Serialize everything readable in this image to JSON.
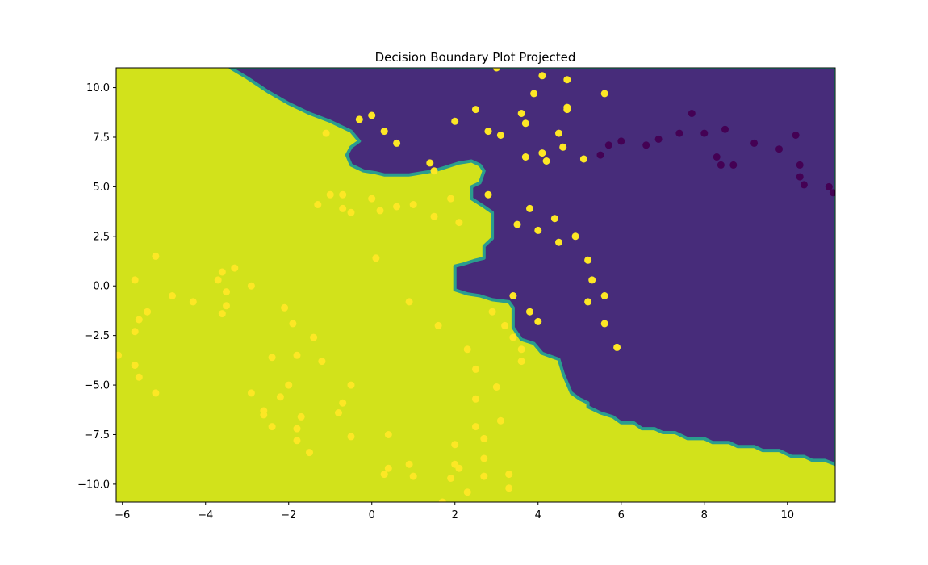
{
  "chart_data": {
    "type": "scatter",
    "title": "Decision Boundary Plot Projected",
    "xlabel": "",
    "ylabel": "",
    "xlim": [
      -6.15,
      11.15
    ],
    "ylim": [
      -10.9,
      11.0
    ],
    "x_ticks": [
      -6,
      -4,
      -2,
      0,
      2,
      4,
      6,
      8,
      10
    ],
    "x_tick_labels": [
      "−6",
      "−4",
      "−2",
      "0",
      "2",
      "4",
      "6",
      "8",
      "10"
    ],
    "y_ticks": [
      -10,
      -7.5,
      -5,
      -2.5,
      0,
      2.5,
      5,
      7.5,
      10
    ],
    "y_tick_labels": [
      "−10.0",
      "−7.5",
      "−5.0",
      "−2.5",
      "0.0",
      "2.5",
      "5.0",
      "7.5",
      "10.0"
    ],
    "grid": false,
    "colors": {
      "class_0_region": "#472c7a",
      "class_1_region": "#d2e21b",
      "boundary_band": "#2a9d8e",
      "class_0_point": "#440154",
      "class_1_point": "#fde725"
    },
    "regions": [
      {
        "class": 0,
        "polygon": [
          [
            -3.4,
            11.0
          ],
          [
            4.7,
            11.0
          ],
          [
            11.15,
            11.0
          ],
          [
            11.15,
            -9.0
          ],
          [
            10.9,
            -8.8
          ],
          [
            10.6,
            -8.8
          ],
          [
            10.4,
            -8.6
          ],
          [
            10.1,
            -8.6
          ],
          [
            9.8,
            -8.3
          ],
          [
            9.4,
            -8.3
          ],
          [
            9.2,
            -8.1
          ],
          [
            8.8,
            -8.1
          ],
          [
            8.6,
            -7.9
          ],
          [
            8.2,
            -7.9
          ],
          [
            8.0,
            -7.7
          ],
          [
            7.6,
            -7.7
          ],
          [
            7.3,
            -7.4
          ],
          [
            7.0,
            -7.4
          ],
          [
            6.8,
            -7.2
          ],
          [
            6.5,
            -7.2
          ],
          [
            6.3,
            -6.9
          ],
          [
            6.0,
            -6.9
          ],
          [
            5.8,
            -6.6
          ],
          [
            5.5,
            -6.4
          ],
          [
            5.2,
            -6.1
          ],
          [
            5.2,
            -5.9
          ],
          [
            5.0,
            -5.7
          ],
          [
            4.8,
            -5.4
          ],
          [
            4.7,
            -4.9
          ],
          [
            4.6,
            -4.4
          ],
          [
            4.5,
            -3.7
          ],
          [
            4.1,
            -3.4
          ],
          [
            3.9,
            -2.9
          ],
          [
            3.6,
            -2.7
          ],
          [
            3.5,
            -2.4
          ],
          [
            3.4,
            -2.1
          ],
          [
            3.4,
            -1.7
          ],
          [
            3.4,
            -1.1
          ],
          [
            3.3,
            -0.8
          ],
          [
            2.9,
            -0.7
          ],
          [
            2.6,
            -0.5
          ],
          [
            2.3,
            -0.4
          ],
          [
            2.0,
            -0.2
          ],
          [
            2.0,
            0.3
          ],
          [
            2.0,
            1.0
          ],
          [
            2.2,
            1.1
          ],
          [
            2.5,
            1.3
          ],
          [
            2.7,
            1.4
          ],
          [
            2.7,
            2.0
          ],
          [
            2.9,
            2.4
          ],
          [
            2.9,
            3.2
          ],
          [
            2.9,
            3.7
          ],
          [
            2.7,
            4.0
          ],
          [
            2.4,
            4.4
          ],
          [
            2.4,
            5.0
          ],
          [
            2.6,
            5.2
          ],
          [
            2.7,
            5.8
          ],
          [
            2.6,
            6.1
          ],
          [
            2.4,
            6.3
          ],
          [
            2.1,
            6.2
          ],
          [
            1.8,
            6.0
          ],
          [
            1.5,
            5.8
          ],
          [
            1.2,
            5.7
          ],
          [
            0.9,
            5.6
          ],
          [
            0.6,
            5.6
          ],
          [
            0.3,
            5.6
          ],
          [
            0.1,
            5.7
          ],
          [
            -0.2,
            5.8
          ],
          [
            -0.5,
            6.1
          ],
          [
            -0.6,
            6.6
          ],
          [
            -0.5,
            7.0
          ],
          [
            -0.3,
            7.3
          ],
          [
            -0.5,
            7.8
          ],
          [
            -1.0,
            8.3
          ],
          [
            -1.5,
            8.7
          ],
          [
            -2.0,
            9.2
          ],
          [
            -2.5,
            9.8
          ],
          [
            -3.0,
            10.5
          ],
          [
            -3.4,
            11.0
          ]
        ]
      }
    ],
    "series": [
      {
        "class": 0,
        "points": [
          [
            5.5,
            6.6
          ],
          [
            5.7,
            7.1
          ],
          [
            6.0,
            7.3
          ],
          [
            6.6,
            7.1
          ],
          [
            6.9,
            7.4
          ],
          [
            7.4,
            7.7
          ],
          [
            7.7,
            8.7
          ],
          [
            8.0,
            7.7
          ],
          [
            8.3,
            6.5
          ],
          [
            8.4,
            6.1
          ],
          [
            8.5,
            7.9
          ],
          [
            8.7,
            6.1
          ],
          [
            9.2,
            7.2
          ],
          [
            9.8,
            6.9
          ],
          [
            10.2,
            7.6
          ],
          [
            10.3,
            6.1
          ],
          [
            10.3,
            5.5
          ],
          [
            10.4,
            5.1
          ],
          [
            11.0,
            5.0
          ],
          [
            11.1,
            4.7
          ]
        ]
      },
      {
        "class": 1,
        "points": [
          [
            -0.3,
            8.4
          ],
          [
            0.0,
            8.6
          ],
          [
            0.3,
            7.8
          ],
          [
            0.6,
            7.2
          ],
          [
            -1.1,
            7.7
          ],
          [
            1.4,
            6.2
          ],
          [
            1.5,
            5.8
          ],
          [
            2.0,
            8.3
          ],
          [
            2.5,
            8.9
          ],
          [
            2.8,
            7.8
          ],
          [
            3.1,
            7.6
          ],
          [
            2.8,
            4.6
          ],
          [
            3.6,
            8.7
          ],
          [
            3.7,
            8.2
          ],
          [
            3.9,
            9.7
          ],
          [
            4.1,
            10.6
          ],
          [
            4.7,
            10.4
          ],
          [
            4.7,
            9.0
          ],
          [
            4.7,
            8.9
          ],
          [
            5.6,
            9.7
          ],
          [
            3.7,
            6.5
          ],
          [
            4.1,
            6.7
          ],
          [
            4.2,
            6.3
          ],
          [
            4.5,
            7.7
          ],
          [
            4.6,
            7.0
          ],
          [
            5.1,
            6.4
          ],
          [
            3.0,
            11.0
          ],
          [
            -1.0,
            4.6
          ],
          [
            -1.3,
            4.1
          ],
          [
            -0.7,
            4.6
          ],
          [
            -0.7,
            3.9
          ],
          [
            -0.5,
            3.7
          ],
          [
            0.0,
            4.4
          ],
          [
            0.2,
            3.8
          ],
          [
            0.6,
            4.0
          ],
          [
            1.0,
            4.1
          ],
          [
            1.5,
            3.5
          ],
          [
            1.9,
            4.4
          ],
          [
            2.1,
            3.2
          ],
          [
            0.1,
            1.4
          ],
          [
            3.5,
            3.1
          ],
          [
            3.8,
            3.9
          ],
          [
            4.0,
            2.8
          ],
          [
            4.4,
            3.4
          ],
          [
            4.5,
            2.2
          ],
          [
            4.9,
            2.5
          ],
          [
            5.2,
            1.3
          ],
          [
            5.3,
            0.3
          ],
          [
            5.6,
            -0.5
          ],
          [
            5.2,
            -0.8
          ],
          [
            3.4,
            -0.5
          ],
          [
            3.8,
            -1.3
          ],
          [
            4.0,
            -1.8
          ],
          [
            5.6,
            -1.9
          ],
          [
            5.9,
            -3.1
          ],
          [
            -5.2,
            1.5
          ],
          [
            -5.7,
            0.3
          ],
          [
            -3.7,
            0.3
          ],
          [
            -3.6,
            0.7
          ],
          [
            -3.3,
            0.9
          ],
          [
            -2.9,
            0.0
          ],
          [
            -4.8,
            -0.5
          ],
          [
            -4.3,
            -0.8
          ],
          [
            -5.4,
            -1.3
          ],
          [
            -5.6,
            -1.7
          ],
          [
            -5.7,
            -2.3
          ],
          [
            -3.5,
            -0.3
          ],
          [
            -3.5,
            -1.0
          ],
          [
            -3.6,
            -1.4
          ],
          [
            -2.1,
            -1.1
          ],
          [
            -1.9,
            -1.9
          ],
          [
            -1.4,
            -2.6
          ],
          [
            0.9,
            -0.8
          ],
          [
            1.6,
            -2.0
          ],
          [
            2.9,
            -1.3
          ],
          [
            3.2,
            -2.0
          ],
          [
            3.4,
            -2.6
          ],
          [
            3.6,
            -3.2
          ],
          [
            3.6,
            -3.8
          ],
          [
            -6.1,
            -3.5
          ],
          [
            -5.7,
            -4.0
          ],
          [
            -5.6,
            -4.6
          ],
          [
            -5.2,
            -5.4
          ],
          [
            -2.4,
            -3.6
          ],
          [
            -1.8,
            -3.5
          ],
          [
            -1.2,
            -3.8
          ],
          [
            -2.2,
            -5.6
          ],
          [
            -2.0,
            -5.0
          ],
          [
            -2.9,
            -5.4
          ],
          [
            -2.6,
            -6.3
          ],
          [
            -2.6,
            -6.5
          ],
          [
            -2.4,
            -7.1
          ],
          [
            -1.8,
            -7.2
          ],
          [
            -1.7,
            -6.6
          ],
          [
            -1.8,
            -7.8
          ],
          [
            -1.5,
            -8.4
          ],
          [
            -0.8,
            -6.4
          ],
          [
            -0.7,
            -5.9
          ],
          [
            -0.5,
            -5.0
          ],
          [
            -0.5,
            -7.6
          ],
          [
            0.4,
            -7.5
          ],
          [
            0.3,
            -9.5
          ],
          [
            0.4,
            -9.2
          ],
          [
            0.9,
            -9.0
          ],
          [
            1.0,
            -9.6
          ],
          [
            1.7,
            -10.9
          ],
          [
            1.9,
            -9.7
          ],
          [
            2.0,
            -8.0
          ],
          [
            2.0,
            -9.0
          ],
          [
            2.1,
            -9.2
          ],
          [
            2.3,
            -10.4
          ],
          [
            2.3,
            -3.2
          ],
          [
            2.5,
            -4.2
          ],
          [
            2.5,
            -5.7
          ],
          [
            2.5,
            -7.1
          ],
          [
            2.7,
            -7.7
          ],
          [
            2.7,
            -8.7
          ],
          [
            2.7,
            -9.6
          ],
          [
            3.0,
            -5.1
          ],
          [
            3.1,
            -6.8
          ],
          [
            3.3,
            -9.5
          ],
          [
            3.3,
            -10.2
          ]
        ]
      }
    ]
  }
}
